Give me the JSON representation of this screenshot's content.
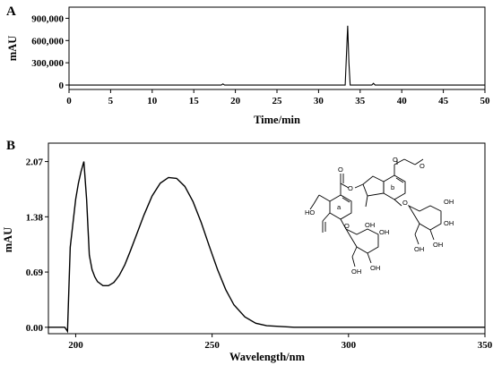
{
  "panels": [
    {
      "letter": "A",
      "xlabel": "Time/min",
      "ylabel": "mAU",
      "x_ticks": [
        "0",
        "5",
        "10",
        "15",
        "20",
        "25",
        "30",
        "35",
        "40",
        "45",
        "50"
      ],
      "y_ticks": [
        "0",
        "300,000",
        "600,000",
        "900,000"
      ]
    },
    {
      "letter": "B",
      "xlabel": "Wavelength/nm",
      "ylabel": "mAU",
      "x_ticks": [
        "200",
        "250",
        "300",
        "350"
      ],
      "y_ticks": [
        "0.00",
        "0.69",
        "1.38",
        "2.07"
      ]
    }
  ],
  "structure_labels": {
    "ester_o_top": "O",
    "ester_o_top2": "O",
    "ring_o_b": "O",
    "label_b": "b",
    "ester_link_o": "O",
    "ester_link_o2": "O",
    "oh_left": "HO",
    "label_a": "a",
    "ring_o_a": "O",
    "glc_oh1": "OH",
    "glc_oh2": "OH",
    "glc_oh3": "OH",
    "glc_oh4": "OH",
    "glc_oh5": "OH",
    "glc_oh6": "OH",
    "glc_oh7": "OH",
    "glc_oh8": "OH"
  },
  "chart_data": [
    {
      "type": "line",
      "panel": "A",
      "xlabel": "Time/min",
      "ylabel": "mAU",
      "xlim": [
        0,
        50
      ],
      "ylim": [
        -60000,
        1050000
      ],
      "x_ticks": [
        0,
        5,
        10,
        15,
        20,
        25,
        30,
        35,
        40,
        45,
        50
      ],
      "y_ticks": [
        0,
        300000,
        600000,
        900000
      ],
      "series": [
        {
          "x": [
            0,
            18.3,
            18.5,
            18.7,
            33.2,
            33.35,
            33.5,
            33.65,
            33.8,
            36.4,
            36.6,
            36.8,
            50
          ],
          "y": [
            0,
            0,
            15000,
            0,
            0,
            400000,
            800000,
            300000,
            0,
            0,
            22000,
            0,
            0
          ]
        }
      ]
    },
    {
      "type": "line",
      "panel": "B",
      "xlabel": "Wavelength/nm",
      "ylabel": "mAU",
      "xlim": [
        190,
        350
      ],
      "ylim": [
        -0.08,
        2.3
      ],
      "x_ticks": [
        200,
        250,
        300,
        350
      ],
      "y_ticks": [
        0.0,
        0.69,
        1.38,
        2.07
      ],
      "series": [
        {
          "x": [
            190,
            196,
            197,
            198,
            199,
            200,
            201,
            202,
            203,
            204,
            205,
            206,
            207,
            208,
            210,
            212,
            214,
            216,
            218,
            220,
            222,
            225,
            228,
            231,
            234,
            237,
            240,
            243,
            246,
            249,
            252,
            255,
            258,
            262,
            266,
            270,
            275,
            280,
            290,
            300,
            320,
            350
          ],
          "y": [
            0.0,
            0.0,
            -0.05,
            1.0,
            1.3,
            1.6,
            1.8,
            1.95,
            2.07,
            1.6,
            0.9,
            0.72,
            0.63,
            0.57,
            0.52,
            0.52,
            0.56,
            0.65,
            0.78,
            0.95,
            1.13,
            1.4,
            1.64,
            1.8,
            1.87,
            1.86,
            1.76,
            1.57,
            1.31,
            1.01,
            0.72,
            0.47,
            0.28,
            0.13,
            0.05,
            0.02,
            0.01,
            0.0,
            0.0,
            0.0,
            0.0,
            0.0
          ]
        }
      ]
    }
  ]
}
